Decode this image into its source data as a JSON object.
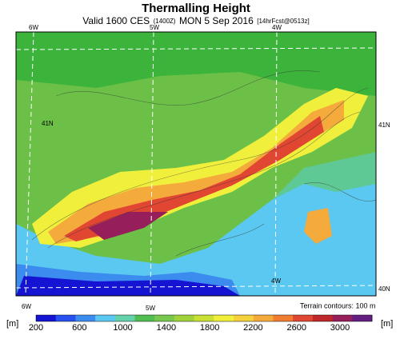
{
  "header": {
    "title": "Thermalling Height",
    "subtitle": {
      "valid": "Valid 1600 CES",
      "utc": "(1400Z)",
      "date": "MON 5 Sep 2016",
      "forecast": "[14hrFcst@0513z]"
    }
  },
  "map": {
    "lon_labels_top": [
      "6W",
      "5W",
      "4W"
    ],
    "lon_labels_bottom": [
      "6W",
      "5W",
      "4W"
    ],
    "lat_labels_left": [
      "41N"
    ],
    "lat_labels_right": [
      "41N",
      "40N"
    ],
    "note": "Terrain contours: 100 m"
  },
  "colorbar": {
    "unit": "[m]",
    "ticks": [
      200,
      600,
      1000,
      1400,
      1800,
      2200,
      2600,
      3000
    ],
    "colors": [
      "#1414d2",
      "#2850f0",
      "#3c8cf0",
      "#5ac8f0",
      "#64d2aa",
      "#50be50",
      "#78c850",
      "#a0d23c",
      "#c8e132",
      "#f0f03c",
      "#f5d23c",
      "#f5aa3c",
      "#f07d32",
      "#e14632",
      "#be2828",
      "#961e5a",
      "#641e82"
    ]
  }
}
